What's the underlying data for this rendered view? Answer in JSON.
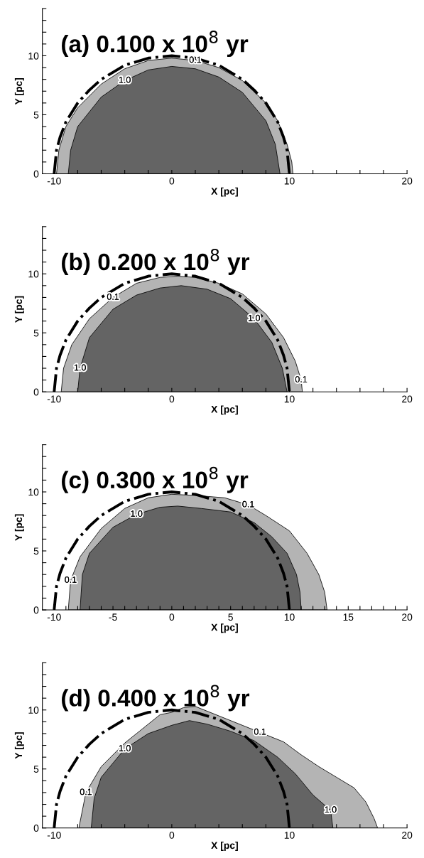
{
  "chart_data": [
    {
      "type": "area",
      "title": "(a) 0.100 x 10$^{8}$ yr",
      "xlabel": "X [pc]",
      "ylabel": "Y [pc]",
      "xlim": [
        -11,
        20
      ],
      "ylim": [
        0,
        14
      ],
      "xticks": [
        -10,
        {
          "value": -8,
          "label": null
        },
        {
          "value": -6,
          "label": null
        },
        {
          "value": -4,
          "label": null
        },
        {
          "value": -2,
          "label": null
        },
        0,
        {
          "value": 2,
          "label": null
        },
        {
          "value": 4,
          "label": null
        },
        {
          "value": 6,
          "label": null
        },
        {
          "value": 8,
          "label": null
        },
        10,
        {
          "value": 12,
          "label": null
        },
        {
          "value": 14,
          "label": null
        },
        {
          "value": 16,
          "label": null
        },
        {
          "value": 18,
          "label": null
        },
        20
      ],
      "yticks": [
        0,
        {
          "value": 1,
          "label": null
        },
        {
          "value": 2,
          "label": null
        },
        {
          "value": 3,
          "label": null
        },
        {
          "value": 4,
          "label": null
        },
        5,
        {
          "value": 6,
          "label": null
        },
        {
          "value": 7,
          "label": null
        },
        {
          "value": 8,
          "label": null
        },
        {
          "value": 9,
          "label": null
        },
        10,
        {
          "value": 11,
          "label": null
        },
        {
          "value": 12,
          "label": null
        },
        {
          "value": 13,
          "label": null
        },
        {
          "value": 14,
          "label": null
        }
      ],
      "series": [
        {
          "color": "#b4b4b4",
          "x": [
            -9.8,
            -9.6,
            -9,
            -8,
            -6,
            -4,
            -2,
            0,
            2,
            4,
            6,
            8,
            9,
            9.8,
            10.2,
            10.3
          ],
          "values": [
            0,
            2,
            4,
            5.6,
            7.6,
            8.9,
            9.6,
            9.8,
            9.6,
            9.0,
            7.9,
            6.0,
            4.5,
            2.5,
            1,
            0
          ]
        },
        {
          "color": "#646464",
          "x": [
            -8.8,
            -8.6,
            -8,
            -6,
            -4,
            -2,
            0,
            2,
            4,
            6,
            8,
            8.8,
            9.2
          ],
          "values": [
            0,
            2,
            4,
            6.5,
            7.9,
            8.8,
            9.1,
            8.9,
            8.2,
            6.9,
            4.5,
            2.5,
            0
          ]
        },
        {
          "type": "line",
          "color": "#000000",
          "line_style": "dashdot",
          "x": [
            -10,
            -9.8,
            -9.5,
            -9,
            -8,
            -7,
            -6,
            -4,
            -2,
            0,
            2,
            4,
            6,
            7,
            8,
            9,
            9.5,
            9.8,
            10
          ],
          "values": [
            0,
            2,
            3.1,
            4.4,
            6,
            7.1,
            8,
            9.2,
            9.8,
            10,
            9.8,
            9.2,
            8,
            7.1,
            6,
            4.4,
            3.1,
            2,
            0
          ]
        }
      ],
      "annotations": [
        {
          "text": "1.0",
          "x": -4,
          "y": 7.9
        },
        {
          "text": "0.1",
          "x": 2,
          "y": 9.6
        }
      ]
    },
    {
      "type": "area",
      "title": "(b) 0.200 x 10$^{8}$ yr",
      "xlabel": "X [pc]",
      "ylabel": "Y [pc]",
      "xlim": [
        -11,
        20
      ],
      "ylim": [
        0,
        14
      ],
      "xticks": [
        -10,
        {
          "value": -8,
          "label": null
        },
        {
          "value": -6,
          "label": null
        },
        {
          "value": -4,
          "label": null
        },
        {
          "value": -2,
          "label": null
        },
        0,
        {
          "value": 2,
          "label": null
        },
        {
          "value": 4,
          "label": null
        },
        {
          "value": 6,
          "label": null
        },
        {
          "value": 8,
          "label": null
        },
        10,
        {
          "value": 12,
          "label": null
        },
        {
          "value": 14,
          "label": null
        },
        {
          "value": 16,
          "label": null
        },
        {
          "value": 18,
          "label": null
        },
        20
      ],
      "yticks": [
        0,
        {
          "value": 1,
          "label": null
        },
        {
          "value": 2,
          "label": null
        },
        {
          "value": 3,
          "label": null
        },
        {
          "value": 4,
          "label": null
        },
        5,
        {
          "value": 6,
          "label": null
        },
        {
          "value": 7,
          "label": null
        },
        {
          "value": 8,
          "label": null
        },
        {
          "value": 9,
          "label": null
        },
        10,
        {
          "value": 11,
          "label": null
        },
        {
          "value": 12,
          "label": null
        },
        {
          "value": 13,
          "label": null
        },
        {
          "value": 14,
          "label": null
        }
      ],
      "series": [
        {
          "color": "#b4b4b4",
          "x": [
            -9.4,
            -9.2,
            -8.5,
            -7,
            -5,
            -3,
            -1,
            0.5,
            2,
            4,
            6,
            8,
            9.5,
            10.5,
            11,
            11.1
          ],
          "values": [
            0,
            2,
            4,
            6.2,
            8,
            9.2,
            9.7,
            9.8,
            9.7,
            9.2,
            8.3,
            6.6,
            4.6,
            2.6,
            1,
            0
          ]
        },
        {
          "color": "#646464",
          "x": [
            -8,
            -7.8,
            -7,
            -5,
            -3,
            -1,
            0.8,
            3,
            5,
            7,
            8.5,
            9.4,
            9.8
          ],
          "values": [
            0,
            2,
            4.6,
            7,
            8.2,
            8.8,
            9.0,
            8.7,
            7.9,
            6.2,
            4.2,
            2,
            0
          ]
        },
        {
          "type": "line",
          "color": "#000000",
          "line_style": "dashdot",
          "x": [
            -10,
            -9.8,
            -9.5,
            -9,
            -8,
            -7,
            -6,
            -4,
            -2,
            0,
            2,
            4,
            6,
            7,
            8,
            9,
            9.5,
            9.8,
            10
          ],
          "values": [
            0,
            2,
            3.1,
            4.4,
            6,
            7.1,
            8,
            9.2,
            9.8,
            10,
            9.8,
            9.2,
            8,
            7.1,
            6,
            4.4,
            3.1,
            2,
            0
          ]
        }
      ],
      "annotations": [
        {
          "text": "0.1",
          "x": -5,
          "y": 8
        },
        {
          "text": "1.0",
          "x": 7,
          "y": 6.2
        },
        {
          "text": "1.0",
          "x": -7.8,
          "y": 2
        },
        {
          "text": "0.1",
          "x": 11,
          "y": 1
        }
      ]
    },
    {
      "type": "area",
      "title": "(c) 0.300 x 10$^{8}$ yr",
      "xlabel": "X [pc]",
      "ylabel": "Y [pc]",
      "xlim": [
        -11,
        20
      ],
      "ylim": [
        0,
        14
      ],
      "xticks": [
        -10,
        {
          "value": -9,
          "label": null
        },
        {
          "value": -8,
          "label": null
        },
        {
          "value": -7,
          "label": null
        },
        {
          "value": -6,
          "label": null
        },
        -5,
        {
          "value": -4,
          "label": null
        },
        {
          "value": -3,
          "label": null
        },
        {
          "value": -2,
          "label": null
        },
        {
          "value": -1,
          "label": null
        },
        0,
        {
          "value": 1,
          "label": null
        },
        {
          "value": 2,
          "label": null
        },
        {
          "value": 3,
          "label": null
        },
        {
          "value": 4,
          "label": null
        },
        5,
        {
          "value": 6,
          "label": null
        },
        {
          "value": 7,
          "label": null
        },
        {
          "value": 8,
          "label": null
        },
        {
          "value": 9,
          "label": null
        },
        10,
        {
          "value": 11,
          "label": null
        },
        {
          "value": 12,
          "label": null
        },
        {
          "value": 13,
          "label": null
        },
        {
          "value": 14,
          "label": null
        },
        15,
        {
          "value": 16,
          "label": null
        },
        {
          "value": 17,
          "label": null
        },
        {
          "value": 18,
          "label": null
        },
        {
          "value": 19,
          "label": null
        },
        20
      ],
      "yticks": [
        0,
        {
          "value": 1,
          "label": null
        },
        {
          "value": 2,
          "label": null
        },
        {
          "value": 3,
          "label": null
        },
        {
          "value": 4,
          "label": null
        },
        5,
        {
          "value": 6,
          "label": null
        },
        {
          "value": 7,
          "label": null
        },
        {
          "value": 8,
          "label": null
        },
        {
          "value": 9,
          "label": null
        },
        10,
        {
          "value": 11,
          "label": null
        },
        {
          "value": 12,
          "label": null
        },
        {
          "value": 13,
          "label": null
        },
        {
          "value": 14,
          "label": null
        }
      ],
      "series": [
        {
          "color": "#b4b4b4",
          "x": [
            -8.8,
            -8.6,
            -7.8,
            -6,
            -4,
            -2,
            0,
            2,
            4.5,
            6.5,
            8,
            10,
            11.5,
            12.5,
            13,
            13.2
          ],
          "values": [
            0,
            2.5,
            4.5,
            6.9,
            8.6,
            9.5,
            9.8,
            9.7,
            9.5,
            8.9,
            8.0,
            6.7,
            4.8,
            3,
            1.5,
            0
          ]
        },
        {
          "color": "#646464",
          "x": [
            -7.8,
            -7.6,
            -7,
            -5,
            -3,
            -1,
            0.5,
            2.5,
            5,
            7,
            8.5,
            9.8,
            10.6,
            10.9,
            11
          ],
          "values": [
            0,
            3,
            4.8,
            7,
            8.1,
            8.7,
            8.8,
            8.6,
            8.3,
            7.4,
            6.2,
            4.8,
            3,
            1.5,
            0
          ]
        },
        {
          "type": "line",
          "color": "#000000",
          "line_style": "dashdot",
          "x": [
            -10,
            -9.8,
            -9.5,
            -9,
            -8,
            -7,
            -6,
            -4,
            -2,
            0,
            2,
            4,
            6,
            7,
            8,
            9,
            9.5,
            9.8,
            10
          ],
          "values": [
            0,
            2,
            3.1,
            4.4,
            6,
            7.1,
            8,
            9.2,
            9.8,
            10,
            9.8,
            9.2,
            8,
            7.1,
            6,
            4.4,
            3.1,
            2,
            0
          ]
        }
      ],
      "annotations": [
        {
          "text": "1.0",
          "x": -3,
          "y": 8.1
        },
        {
          "text": "0.1",
          "x": 6.5,
          "y": 8.9
        },
        {
          "text": "0.1",
          "x": -8.6,
          "y": 2.5
        }
      ]
    },
    {
      "type": "area",
      "title": "(d) 0.400 x 10$^{8}$ yr",
      "xlabel": "X [pc]",
      "ylabel": "Y [pc]",
      "xlim": [
        -11,
        20
      ],
      "ylim": [
        0,
        14
      ],
      "xticks": [
        -10,
        {
          "value": -8,
          "label": null
        },
        {
          "value": -6,
          "label": null
        },
        {
          "value": -4,
          "label": null
        },
        {
          "value": -2,
          "label": null
        },
        0,
        {
          "value": 2,
          "label": null
        },
        {
          "value": 4,
          "label": null
        },
        {
          "value": 6,
          "label": null
        },
        {
          "value": 8,
          "label": null
        },
        10,
        {
          "value": 12,
          "label": null
        },
        {
          "value": 14,
          "label": null
        },
        {
          "value": 16,
          "label": null
        },
        {
          "value": 18,
          "label": null
        },
        20
      ],
      "yticks": [
        0,
        {
          "value": 1,
          "label": null
        },
        {
          "value": 2,
          "label": null
        },
        {
          "value": 3,
          "label": null
        },
        {
          "value": 4,
          "label": null
        },
        5,
        {
          "value": 6,
          "label": null
        },
        {
          "value": 7,
          "label": null
        },
        {
          "value": 8,
          "label": null
        },
        {
          "value": 9,
          "label": null
        },
        10,
        {
          "value": 11,
          "label": null
        },
        {
          "value": 12,
          "label": null
        },
        {
          "value": 13,
          "label": null
        },
        {
          "value": 14,
          "label": null
        }
      ],
      "series": [
        {
          "color": "#b4b4b4",
          "x": [
            -7.9,
            -7.3,
            -6,
            -4,
            -2,
            -1,
            0,
            1,
            2,
            4,
            6,
            7.5,
            9.5,
            11,
            12.5,
            14,
            15.5,
            16.5,
            17.2,
            17.5
          ],
          "values": [
            0,
            3,
            5.2,
            7.2,
            8.8,
            9.6,
            9.8,
            10.2,
            10.3,
            9.5,
            8.7,
            8.1,
            7.3,
            6.2,
            5.2,
            4.3,
            3.4,
            2.2,
            0.8,
            0
          ]
        },
        {
          "color": "#646464",
          "x": [
            -6.85,
            -6.6,
            -6,
            -4,
            -2,
            0,
            1.5,
            3,
            5,
            7,
            9,
            10.5,
            12,
            13.5,
            13.7
          ],
          "values": [
            0,
            2.5,
            4.3,
            6.7,
            8.0,
            8.7,
            9.1,
            8.8,
            8.2,
            7.4,
            6.0,
            4.6,
            2.8,
            1.5,
            0
          ]
        },
        {
          "type": "line",
          "color": "#000000",
          "line_style": "dashdot",
          "x": [
            -10,
            -9.8,
            -9.5,
            -9,
            -8,
            -7,
            -6,
            -4,
            -2,
            0,
            2,
            4,
            6,
            7,
            8,
            9,
            9.5,
            9.8,
            10
          ],
          "values": [
            0,
            2,
            3.1,
            4.4,
            6,
            7.1,
            8,
            9.2,
            9.8,
            10,
            9.8,
            9.2,
            8,
            7.1,
            6,
            4.4,
            3.1,
            2,
            0
          ]
        }
      ],
      "annotations": [
        {
          "text": "1.0",
          "x": -4,
          "y": 6.7
        },
        {
          "text": "0.1",
          "x": 7.5,
          "y": 8.1
        },
        {
          "text": "0.1",
          "x": -7.3,
          "y": 3
        },
        {
          "text": "1.0",
          "x": 13.5,
          "y": 1.5
        }
      ]
    }
  ]
}
